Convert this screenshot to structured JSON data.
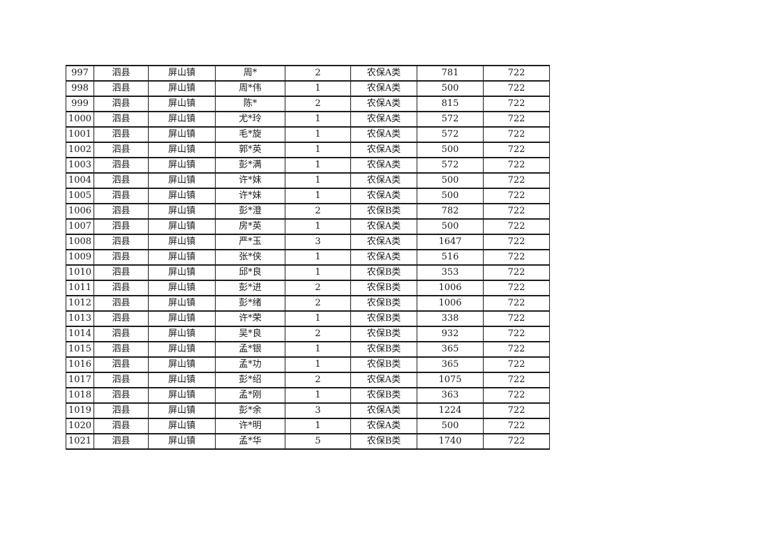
{
  "page": {
    "background_color": "#ffffff",
    "table_border_color": "#1c1c1c"
  },
  "table": {
    "column_keys": [
      "serial",
      "county",
      "town",
      "name",
      "count",
      "category",
      "amount",
      "code"
    ],
    "rows": [
      [
        "997",
        "泗县",
        "屏山镇",
        "周*",
        "2",
        "农保A类",
        "781",
        "722"
      ],
      [
        "998",
        "泗县",
        "屏山镇",
        "周*伟",
        "1",
        "农保A类",
        "500",
        "722"
      ],
      [
        "999",
        "泗县",
        "屏山镇",
        "陈*",
        "2",
        "农保A类",
        "815",
        "722"
      ],
      [
        "1000",
        "泗县",
        "屏山镇",
        "尤*玲",
        "1",
        "农保A类",
        "572",
        "722"
      ],
      [
        "1001",
        "泗县",
        "屏山镇",
        "毛*旋",
        "1",
        "农保A类",
        "572",
        "722"
      ],
      [
        "1002",
        "泗县",
        "屏山镇",
        "郭*英",
        "1",
        "农保A类",
        "500",
        "722"
      ],
      [
        "1003",
        "泗县",
        "屏山镇",
        "彭*满",
        "1",
        "农保A类",
        "572",
        "722"
      ],
      [
        "1004",
        "泗县",
        "屏山镇",
        "许*妹",
        "1",
        "农保A类",
        "500",
        "722"
      ],
      [
        "1005",
        "泗县",
        "屏山镇",
        "许*妹",
        "1",
        "农保A类",
        "500",
        "722"
      ],
      [
        "1006",
        "泗县",
        "屏山镇",
        "彭*澄",
        "2",
        "农保B类",
        "782",
        "722"
      ],
      [
        "1007",
        "泗县",
        "屏山镇",
        "房*英",
        "1",
        "农保A类",
        "500",
        "722"
      ],
      [
        "1008",
        "泗县",
        "屏山镇",
        "严*玉",
        "3",
        "农保A类",
        "1647",
        "722"
      ],
      [
        "1009",
        "泗县",
        "屏山镇",
        "张*侠",
        "1",
        "农保A类",
        "516",
        "722"
      ],
      [
        "1010",
        "泗县",
        "屏山镇",
        "邱*良",
        "1",
        "农保B类",
        "353",
        "722"
      ],
      [
        "1011",
        "泗县",
        "屏山镇",
        "彭*进",
        "2",
        "农保B类",
        "1006",
        "722"
      ],
      [
        "1012",
        "泗县",
        "屏山镇",
        "彭*绪",
        "2",
        "农保B类",
        "1006",
        "722"
      ],
      [
        "1013",
        "泗县",
        "屏山镇",
        "许*荣",
        "1",
        "农保B类",
        "338",
        "722"
      ],
      [
        "1014",
        "泗县",
        "屏山镇",
        "吴*良",
        "2",
        "农保B类",
        "932",
        "722"
      ],
      [
        "1015",
        "泗县",
        "屏山镇",
        "孟*银",
        "1",
        "农保B类",
        "365",
        "722"
      ],
      [
        "1016",
        "泗县",
        "屏山镇",
        "孟*功",
        "1",
        "农保B类",
        "365",
        "722"
      ],
      [
        "1017",
        "泗县",
        "屏山镇",
        "彭*绍",
        "2",
        "农保A类",
        "1075",
        "722"
      ],
      [
        "1018",
        "泗县",
        "屏山镇",
        "孟*刚",
        "1",
        "农保B类",
        "363",
        "722"
      ],
      [
        "1019",
        "泗县",
        "屏山镇",
        "彭*余",
        "3",
        "农保A类",
        "1224",
        "722"
      ],
      [
        "1020",
        "泗县",
        "屏山镇",
        "许*明",
        "1",
        "农保A类",
        "500",
        "722"
      ],
      [
        "1021",
        "泗县",
        "屏山镇",
        "孟*华",
        "5",
        "农保B类",
        "1740",
        "722"
      ]
    ]
  }
}
